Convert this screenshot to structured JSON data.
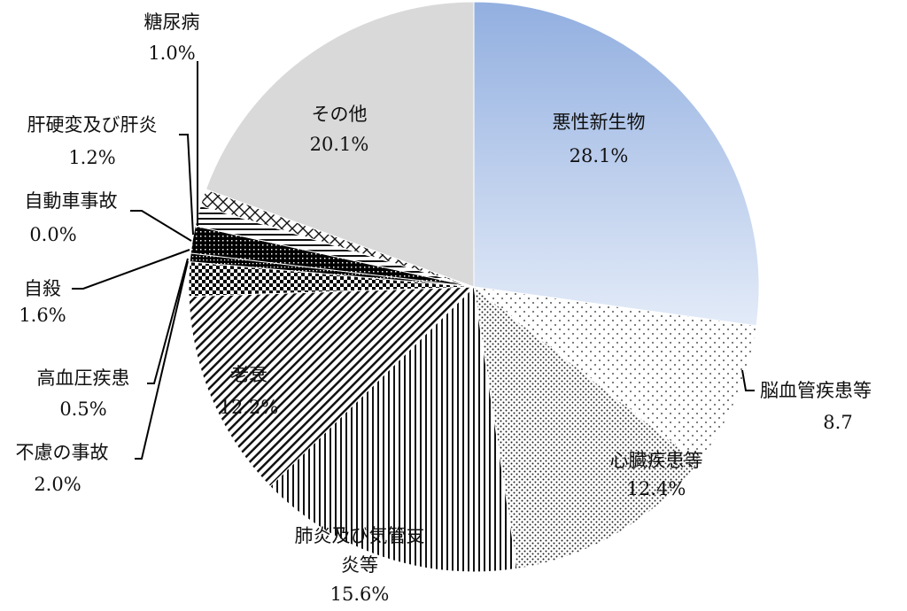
{
  "chart_data": {
    "type": "pie",
    "title": "",
    "start": "12 o'clock",
    "direction": "clockwise",
    "slices": [
      {
        "label": "悪性新生物",
        "value": 28.1,
        "value_text": "28.1%",
        "fill": "gradient",
        "colors": [
          "#92afe0",
          "#e3ebf8"
        ]
      },
      {
        "label": "脳血管疾患等",
        "value": 8.7,
        "value_text": "8.7",
        "fill": "sparse-dots",
        "colors": [
          "#555555"
        ]
      },
      {
        "label": "心臓疾患等",
        "value": 12.4,
        "value_text": "12.4%",
        "fill": "dense-dots",
        "colors": [
          "#222222"
        ]
      },
      {
        "label": "肺炎及び気管支炎等",
        "value": 15.6,
        "value_text": "15.6%",
        "fill": "vertical-lines",
        "colors": [
          "#111111"
        ]
      },
      {
        "label": "老衰",
        "value": 12.2,
        "value_text": "12.2%",
        "fill": "diagonal-lines",
        "colors": [
          "#111111"
        ]
      },
      {
        "label": "不慮の事故",
        "value": 2.0,
        "value_text": "2.0%",
        "fill": "checker",
        "colors": [
          "#000000"
        ]
      },
      {
        "label": "高血圧疾患",
        "value": 0.5,
        "value_text": "0.5%",
        "fill": "dark-grid",
        "colors": [
          "#000000"
        ]
      },
      {
        "label": "自殺",
        "value": 1.6,
        "value_text": "1.6%",
        "fill": "dark-checker",
        "colors": [
          "#000000"
        ]
      },
      {
        "label": "自動車事故",
        "value": 0.0,
        "value_text": "0.0%",
        "fill": "solid",
        "colors": [
          "#000000"
        ]
      },
      {
        "label": "肝硬変及び肝炎",
        "value": 1.2,
        "value_text": "1.2%",
        "fill": "horizontal-lines",
        "colors": [
          "#111111"
        ]
      },
      {
        "label": "糖尿病",
        "value": 1.0,
        "value_text": "1.0%",
        "fill": "crosshatch",
        "colors": [
          "#111111"
        ]
      },
      {
        "label": "その他",
        "value": 20.1,
        "value_text": "20.1%",
        "fill": "solid",
        "colors": [
          "#d9d9d9"
        ]
      }
    ],
    "labels": {
      "malignant_name": "悪性新生物",
      "malignant_value": "28.1%",
      "cerebro_name": "脳血管疾患等",
      "cerebro_value": "8.7",
      "heart_name": "心臓疾患等",
      "heart_value": "12.4%",
      "pneumonia_name_1": "肺炎及び気管支",
      "pneumonia_name_2": "炎等",
      "pneumonia_value": "15.6%",
      "senility_name": "老衰",
      "senility_value": "12.2%",
      "accident_name": "不慮の事故",
      "accident_value": "2.0%",
      "hypertension_name": "高血圧疾患",
      "hypertension_value": "0.5%",
      "suicide_name": "自殺",
      "suicide_value": "1.6%",
      "traffic_name": "自動車事故",
      "traffic_value": "0.0%",
      "liver_name": "肝硬変及び肝炎",
      "liver_value": "1.2%",
      "diabetes_name": "糖尿病",
      "diabetes_value": "1.0%",
      "other_name": "その他",
      "other_value": "20.1%"
    }
  }
}
